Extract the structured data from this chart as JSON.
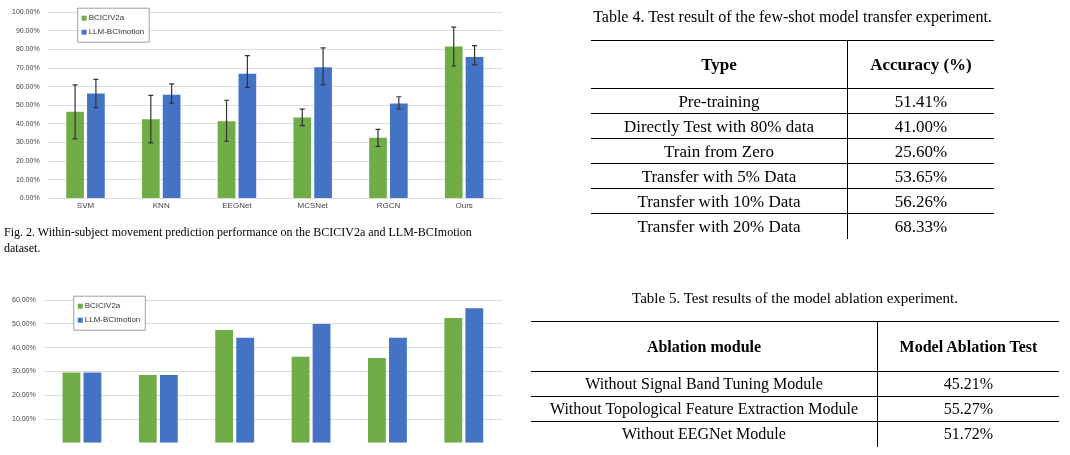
{
  "chart_data": [
    {
      "type": "bar",
      "categories": [
        "SVM",
        "KNN",
        "EEGNet",
        "MCSNet",
        "RGCN",
        "Ours"
      ],
      "series": [
        {
          "name": "BCICIV2a",
          "color": "#70ad47",
          "values": [
            46.5,
            42.5,
            41.5,
            43.4,
            32.6,
            81.6
          ],
          "errors": [
            [
              32,
              61
            ],
            [
              29.8,
              55.3
            ],
            [
              30.7,
              52.7
            ],
            [
              39.1,
              47.9
            ],
            [
              27.9,
              37.1
            ],
            [
              71.1,
              92
            ]
          ]
        },
        {
          "name": "LLM-BCImotion",
          "color": "#4472c4",
          "values": [
            56.4,
            55.7,
            67,
            70.4,
            51,
            76
          ],
          "errors": [
            [
              48.8,
              63.9
            ],
            [
              51.2,
              61.5
            ],
            [
              59.6,
              76.7
            ],
            [
              61.1,
              80.8
            ],
            [
              48,
              54.6
            ],
            [
              71.7,
              82.1
            ]
          ]
        }
      ],
      "ylim": [
        0,
        100
      ],
      "yticks": [
        {
          "value": 0,
          "label": "0.00%"
        },
        {
          "value": 10,
          "label": "10.00%"
        },
        {
          "value": 20,
          "label": "20.00%"
        },
        {
          "value": 30,
          "label": "30.00%"
        },
        {
          "value": 40,
          "label": "40.00%"
        },
        {
          "value": 50,
          "label": "50.00%"
        },
        {
          "value": 60,
          "label": "60.00%"
        },
        {
          "value": 70,
          "label": "70.00%"
        },
        {
          "value": 80,
          "label": "80.00%"
        },
        {
          "value": 90,
          "label": "90.00%"
        },
        {
          "value": 100,
          "label": "100.00%"
        }
      ],
      "grid": "y",
      "legend": "top left",
      "annotations": [
        "Fig. 2. Within-subject movement prediction performance on the BCICIV2a and LLM-BCImotion dataset."
      ]
    },
    {
      "type": "bar",
      "categories": [
        null,
        null,
        null,
        null,
        null,
        null
      ],
      "series": [
        {
          "name": "BCICIV2a",
          "color": "#70ad47",
          "values": [
            29.6,
            28.5,
            47.5,
            36.2,
            35.7,
            52.5
          ]
        },
        {
          "name": "LLM-BCImotion",
          "color": "#4472c4",
          "values": [
            29.6,
            28.5,
            44.2,
            50,
            44.2,
            56.6
          ]
        }
      ],
      "ylim": [
        0,
        60
      ],
      "yticks": [
        {
          "value": 10,
          "label": "10.00%"
        },
        {
          "value": 20,
          "label": "20.00%"
        },
        {
          "value": 30,
          "label": "30.00%"
        },
        {
          "value": 40,
          "label": "40.00%"
        },
        {
          "value": 50,
          "label": "50.00%"
        },
        {
          "value": 60,
          "label": "60.00%"
        }
      ],
      "grid": "y",
      "legend": "top left"
    },
    {
      "type": "other",
      "title": "Table 4. Test result of the few-shot model transfer experiment.",
      "annotations": [
        "Type",
        "Accuracy (%)",
        "Pre-training",
        "51.41%",
        "Directly Test with 80% data",
        "41.00%",
        "Train from Zero",
        "25.60%",
        "Transfer with 5% Data",
        "53.65%",
        "Transfer with 10% Data",
        "56.26%",
        "Transfer with 20% Data",
        "68.33%"
      ]
    },
    {
      "type": "other",
      "title": "Table 5. Test results of the model ablation experiment.",
      "annotations": [
        "Ablation module",
        "Model Ablation Test",
        "Without Signal Band Tuning Module",
        "45.21%",
        "Without Topological Feature Extraction Module",
        "55.27%",
        "Without EEGNet Module",
        "51.72%"
      ]
    }
  ]
}
